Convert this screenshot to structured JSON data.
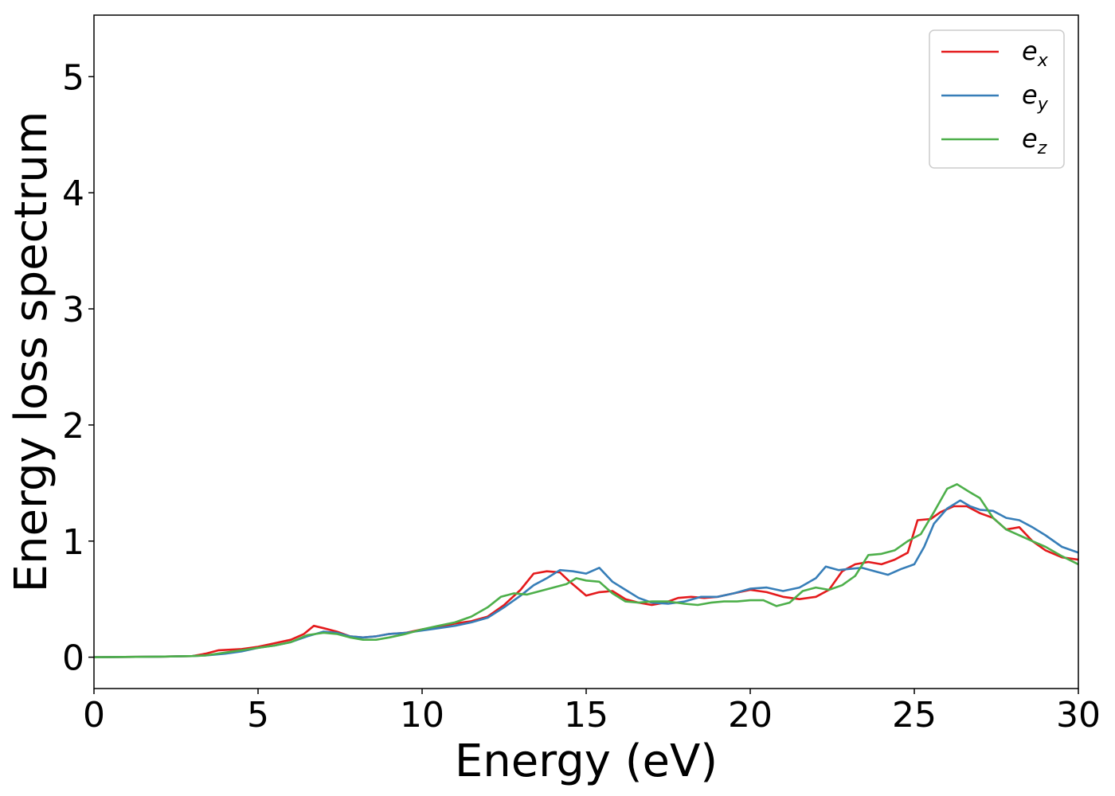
{
  "chart_data": {
    "type": "line",
    "xlabel": "Energy (eV)",
    "ylabel": "Energy loss spectrum",
    "xlim": [
      0,
      30
    ],
    "ylim": [
      -0.27,
      5.53
    ],
    "xticks": [
      0,
      5,
      10,
      15,
      20,
      25,
      30
    ],
    "yticks": [
      0,
      1,
      2,
      3,
      4,
      5
    ],
    "grid": false,
    "legend_position": "top-right",
    "series": [
      {
        "name": "e",
        "subscript": "x",
        "color": "#e41a1c",
        "points": [
          [
            0,
            0
          ],
          [
            2,
            0.005
          ],
          [
            3,
            0.01
          ],
          [
            3.4,
            0.03
          ],
          [
            3.8,
            0.06
          ],
          [
            4.5,
            0.07
          ],
          [
            5,
            0.09
          ],
          [
            5.5,
            0.12
          ],
          [
            6,
            0.15
          ],
          [
            6.4,
            0.2
          ],
          [
            6.7,
            0.27
          ],
          [
            7,
            0.25
          ],
          [
            7.4,
            0.22
          ],
          [
            7.8,
            0.18
          ],
          [
            8.2,
            0.17
          ],
          [
            8.6,
            0.18
          ],
          [
            9,
            0.2
          ],
          [
            9.5,
            0.21
          ],
          [
            10,
            0.24
          ],
          [
            10.5,
            0.26
          ],
          [
            11,
            0.29
          ],
          [
            11.5,
            0.31
          ],
          [
            12,
            0.35
          ],
          [
            12.5,
            0.45
          ],
          [
            13,
            0.58
          ],
          [
            13.4,
            0.72
          ],
          [
            13.8,
            0.74
          ],
          [
            14.2,
            0.73
          ],
          [
            14.5,
            0.65
          ],
          [
            15,
            0.53
          ],
          [
            15.4,
            0.56
          ],
          [
            15.8,
            0.57
          ],
          [
            16.2,
            0.5
          ],
          [
            16.6,
            0.47
          ],
          [
            17,
            0.45
          ],
          [
            17.4,
            0.47
          ],
          [
            17.8,
            0.51
          ],
          [
            18.2,
            0.52
          ],
          [
            18.6,
            0.51
          ],
          [
            19,
            0.52
          ],
          [
            19.5,
            0.55
          ],
          [
            20,
            0.58
          ],
          [
            20.5,
            0.56
          ],
          [
            21,
            0.52
          ],
          [
            21.5,
            0.5
          ],
          [
            22,
            0.52
          ],
          [
            22.4,
            0.58
          ],
          [
            22.8,
            0.74
          ],
          [
            23.2,
            0.8
          ],
          [
            23.6,
            0.82
          ],
          [
            24,
            0.8
          ],
          [
            24.4,
            0.84
          ],
          [
            24.8,
            0.9
          ],
          [
            25.1,
            1.18
          ],
          [
            25.5,
            1.19
          ],
          [
            25.8,
            1.25
          ],
          [
            26.2,
            1.3
          ],
          [
            26.6,
            1.3
          ],
          [
            27,
            1.24
          ],
          [
            27.4,
            1.2
          ],
          [
            27.8,
            1.1
          ],
          [
            28.2,
            1.12
          ],
          [
            28.6,
            1.0
          ],
          [
            29,
            0.92
          ],
          [
            29.5,
            0.86
          ],
          [
            30,
            0.84
          ]
        ]
      },
      {
        "name": "e",
        "subscript": "y",
        "color": "#377eb8",
        "points": [
          [
            0,
            0
          ],
          [
            2,
            0.005
          ],
          [
            3,
            0.01
          ],
          [
            3.4,
            0.015
          ],
          [
            4,
            0.03
          ],
          [
            4.5,
            0.05
          ],
          [
            5,
            0.08
          ],
          [
            5.5,
            0.1
          ],
          [
            6,
            0.13
          ],
          [
            6.5,
            0.18
          ],
          [
            7,
            0.22
          ],
          [
            7.4,
            0.21
          ],
          [
            7.8,
            0.18
          ],
          [
            8.2,
            0.17
          ],
          [
            8.6,
            0.18
          ],
          [
            9,
            0.2
          ],
          [
            9.5,
            0.21
          ],
          [
            10,
            0.23
          ],
          [
            10.5,
            0.25
          ],
          [
            11,
            0.27
          ],
          [
            11.5,
            0.3
          ],
          [
            12,
            0.34
          ],
          [
            12.5,
            0.43
          ],
          [
            13,
            0.53
          ],
          [
            13.4,
            0.62
          ],
          [
            13.8,
            0.68
          ],
          [
            14.2,
            0.75
          ],
          [
            14.6,
            0.74
          ],
          [
            15,
            0.72
          ],
          [
            15.4,
            0.77
          ],
          [
            15.8,
            0.65
          ],
          [
            16.2,
            0.58
          ],
          [
            16.6,
            0.51
          ],
          [
            17,
            0.47
          ],
          [
            17.5,
            0.46
          ],
          [
            18,
            0.48
          ],
          [
            18.5,
            0.52
          ],
          [
            19,
            0.52
          ],
          [
            19.5,
            0.55
          ],
          [
            20,
            0.59
          ],
          [
            20.5,
            0.6
          ],
          [
            21,
            0.57
          ],
          [
            21.5,
            0.6
          ],
          [
            22,
            0.68
          ],
          [
            22.3,
            0.78
          ],
          [
            22.7,
            0.75
          ],
          [
            23,
            0.76
          ],
          [
            23.4,
            0.77
          ],
          [
            23.8,
            0.74
          ],
          [
            24.2,
            0.71
          ],
          [
            24.6,
            0.76
          ],
          [
            25,
            0.8
          ],
          [
            25.3,
            0.95
          ],
          [
            25.6,
            1.15
          ],
          [
            26,
            1.28
          ],
          [
            26.4,
            1.35
          ],
          [
            26.7,
            1.3
          ],
          [
            27,
            1.27
          ],
          [
            27.4,
            1.26
          ],
          [
            27.8,
            1.2
          ],
          [
            28.2,
            1.18
          ],
          [
            28.6,
            1.12
          ],
          [
            29,
            1.05
          ],
          [
            29.5,
            0.95
          ],
          [
            30,
            0.9
          ]
        ]
      },
      {
        "name": "e",
        "subscript": "z",
        "color": "#4daf4a",
        "points": [
          [
            0,
            0
          ],
          [
            2,
            0.005
          ],
          [
            3,
            0.01
          ],
          [
            3.4,
            0.015
          ],
          [
            4,
            0.04
          ],
          [
            4.5,
            0.06
          ],
          [
            5,
            0.08
          ],
          [
            5.5,
            0.1
          ],
          [
            6,
            0.13
          ],
          [
            6.5,
            0.19
          ],
          [
            7,
            0.21
          ],
          [
            7.4,
            0.2
          ],
          [
            7.8,
            0.17
          ],
          [
            8.2,
            0.15
          ],
          [
            8.6,
            0.15
          ],
          [
            9,
            0.17
          ],
          [
            9.5,
            0.2
          ],
          [
            10,
            0.24
          ],
          [
            10.5,
            0.27
          ],
          [
            11,
            0.3
          ],
          [
            11.5,
            0.35
          ],
          [
            12,
            0.43
          ],
          [
            12.4,
            0.52
          ],
          [
            12.8,
            0.55
          ],
          [
            13.2,
            0.54
          ],
          [
            13.6,
            0.57
          ],
          [
            14,
            0.6
          ],
          [
            14.4,
            0.63
          ],
          [
            14.7,
            0.68
          ],
          [
            15,
            0.66
          ],
          [
            15.4,
            0.65
          ],
          [
            15.8,
            0.55
          ],
          [
            16.2,
            0.48
          ],
          [
            16.6,
            0.47
          ],
          [
            17,
            0.48
          ],
          [
            17.5,
            0.48
          ],
          [
            18,
            0.46
          ],
          [
            18.4,
            0.45
          ],
          [
            18.8,
            0.47
          ],
          [
            19.2,
            0.48
          ],
          [
            19.6,
            0.48
          ],
          [
            20,
            0.49
          ],
          [
            20.4,
            0.49
          ],
          [
            20.8,
            0.44
          ],
          [
            21.2,
            0.47
          ],
          [
            21.6,
            0.57
          ],
          [
            22,
            0.6
          ],
          [
            22.4,
            0.58
          ],
          [
            22.8,
            0.62
          ],
          [
            23.2,
            0.7
          ],
          [
            23.6,
            0.88
          ],
          [
            24,
            0.89
          ],
          [
            24.4,
            0.92
          ],
          [
            24.8,
            1.0
          ],
          [
            25.2,
            1.06
          ],
          [
            25.6,
            1.25
          ],
          [
            26,
            1.45
          ],
          [
            26.3,
            1.49
          ],
          [
            26.7,
            1.42
          ],
          [
            27,
            1.37
          ],
          [
            27.4,
            1.2
          ],
          [
            27.8,
            1.1
          ],
          [
            28.2,
            1.05
          ],
          [
            28.6,
            1.0
          ],
          [
            29,
            0.95
          ],
          [
            29.5,
            0.87
          ],
          [
            30,
            0.8
          ]
        ]
      }
    ]
  }
}
